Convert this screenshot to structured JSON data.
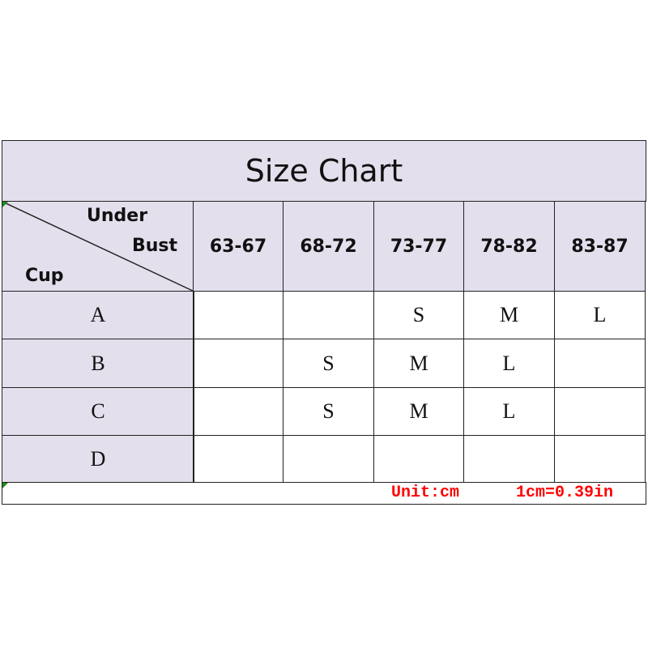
{
  "title": "Size Chart",
  "corner": {
    "top": "Under",
    "middle": "Bust",
    "bottom": "Cup"
  },
  "columns": [
    "63-67",
    "68-72",
    "73-77",
    "78-82",
    "83-87"
  ],
  "rows": [
    {
      "cup": "A",
      "cells": [
        "",
        "",
        "S",
        "M",
        "L"
      ]
    },
    {
      "cup": "B",
      "cells": [
        "",
        "S",
        "M",
        "L",
        ""
      ]
    },
    {
      "cup": "C",
      "cells": [
        "",
        "S",
        "M",
        "L",
        ""
      ]
    },
    {
      "cup": "D",
      "cells": [
        "",
        "",
        "",
        "",
        ""
      ]
    }
  ],
  "footer": {
    "unit": "Unit:cm",
    "conversion": "1cm=0.39in"
  },
  "colors": {
    "header_bg": "#e4dfec",
    "footer_text": "#ff0000"
  }
}
